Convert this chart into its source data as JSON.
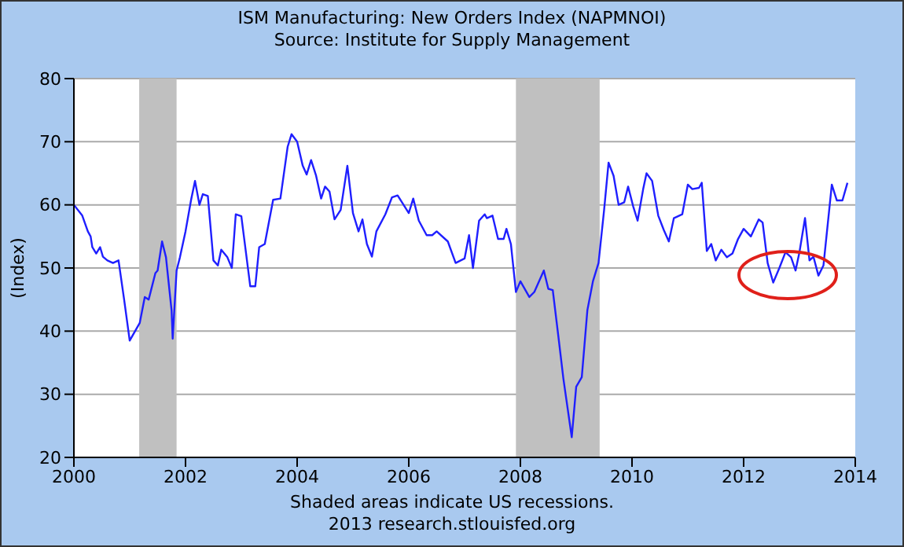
{
  "chart_data": {
    "type": "line",
    "title": "ISM Manufacturing: New Orders Index (NAPMNOI)",
    "subtitle": "Source: Institute for Supply Management",
    "ylabel": "(Index)",
    "annotations": [
      "Shaded areas indicate US recessions.",
      "2013 research.stlouisfed.org"
    ],
    "x": [
      2000.0,
      2000.15,
      2000.25,
      2000.3,
      2000.33,
      2000.4,
      2000.47,
      2000.52,
      2000.6,
      2000.7,
      2000.8,
      2000.9,
      2001.0,
      2001.18,
      2001.27,
      2001.34,
      2001.46,
      2001.5,
      2001.58,
      2001.65,
      2001.75,
      2001.77,
      2001.84,
      2001.9,
      2002.0,
      2002.1,
      2002.17,
      2002.25,
      2002.31,
      2002.4,
      2002.5,
      2002.58,
      2002.64,
      2002.75,
      2002.83,
      2002.9,
      2003.0,
      2003.16,
      2003.25,
      2003.32,
      2003.42,
      2003.57,
      2003.7,
      2003.83,
      2003.9,
      2004.0,
      2004.1,
      2004.17,
      2004.25,
      2004.34,
      2004.43,
      2004.5,
      2004.58,
      2004.67,
      2004.78,
      2004.9,
      2005.0,
      2005.1,
      2005.17,
      2005.25,
      2005.34,
      2005.42,
      2005.58,
      2005.7,
      2005.8,
      2006.0,
      2006.08,
      2006.18,
      2006.32,
      2006.42,
      2006.5,
      2006.7,
      2006.84,
      2007.0,
      2007.08,
      2007.15,
      2007.26,
      2007.36,
      2007.4,
      2007.5,
      2007.6,
      2007.7,
      2007.75,
      2007.83,
      2007.92,
      2008.0,
      2008.16,
      2008.25,
      2008.42,
      2008.5,
      2008.58,
      2008.68,
      2008.77,
      2008.92,
      2009.0,
      2009.1,
      2009.2,
      2009.3,
      2009.4,
      2009.5,
      2009.58,
      2009.67,
      2009.76,
      2009.86,
      2009.93,
      2010.02,
      2010.1,
      2010.2,
      2010.26,
      2010.36,
      2010.47,
      2010.57,
      2010.66,
      2010.75,
      2010.9,
      2011.0,
      2011.08,
      2011.2,
      2011.25,
      2011.34,
      2011.42,
      2011.5,
      2011.6,
      2011.7,
      2011.8,
      2011.9,
      2012.0,
      2012.13,
      2012.27,
      2012.34,
      2012.43,
      2012.53,
      2012.64,
      2012.75,
      2012.85,
      2012.93,
      2013.0,
      2013.1,
      2013.18,
      2013.25,
      2013.34,
      2013.43,
      2013.58,
      2013.67,
      2013.77,
      2013.86
    ],
    "series": [
      {
        "color": "#1f1fff",
        "values": [
          60,
          58.3,
          55.8,
          55,
          53.3,
          52.3,
          53.3,
          51.8,
          51.2,
          50.8,
          51.2,
          45,
          38.5,
          41.3,
          45.4,
          45,
          49.2,
          49.6,
          54.2,
          51.7,
          43.3,
          38.8,
          49.6,
          51.7,
          55.8,
          60.8,
          63.8,
          60,
          61.7,
          61.4,
          51.2,
          50.4,
          52.9,
          51.7,
          50,
          58.5,
          58.2,
          47.1,
          47.1,
          53.3,
          53.8,
          60.8,
          61,
          69.2,
          71.2,
          70,
          66.2,
          64.8,
          67.1,
          64.6,
          61,
          62.9,
          62.1,
          57.7,
          59.2,
          66.2,
          58.7,
          55.8,
          57.7,
          53.8,
          51.8,
          55.8,
          58.5,
          61.2,
          61.5,
          58.7,
          61,
          57.5,
          55.2,
          55.2,
          55.8,
          54.2,
          50.8,
          51.5,
          55.2,
          50,
          57.5,
          58.5,
          57.9,
          58.3,
          54.6,
          54.6,
          56.2,
          53.8,
          46.2,
          47.9,
          45.4,
          46.2,
          49.6,
          46.7,
          46.5,
          39.2,
          32.5,
          23.2,
          31.2,
          32.7,
          43.3,
          47.9,
          50.8,
          59.2,
          66.7,
          64.6,
          60,
          60.4,
          62.9,
          59.8,
          57.5,
          62.5,
          65,
          63.8,
          58.3,
          56,
          54.2,
          57.9,
          58.5,
          63.2,
          62.5,
          62.7,
          63.5,
          52.7,
          53.8,
          51.2,
          52.9,
          51.7,
          52.3,
          54.6,
          56.2,
          55,
          57.7,
          57.2,
          50.8,
          47.7,
          50,
          52.5,
          51.7,
          49.6,
          52.5,
          57.9,
          51.2,
          51.8,
          48.8,
          50.4,
          63.2,
          60.7,
          60.7,
          63.5
        ]
      }
    ],
    "xlim": [
      2000,
      2014
    ],
    "xticks": [
      2000,
      2002,
      2004,
      2006,
      2008,
      2010,
      2012,
      2014
    ],
    "ylim": [
      20,
      80
    ],
    "yticks": [
      20,
      30,
      40,
      50,
      60,
      70,
      80
    ],
    "bands": [
      {
        "axis": "x",
        "from": 2001.17,
        "to": 2001.84,
        "color": "#c0c0c0"
      },
      {
        "axis": "x",
        "from": 2007.92,
        "to": 2009.42,
        "color": "#c0c0c0"
      }
    ],
    "grid": "y",
    "marker": "none",
    "line_style": "solid"
  }
}
